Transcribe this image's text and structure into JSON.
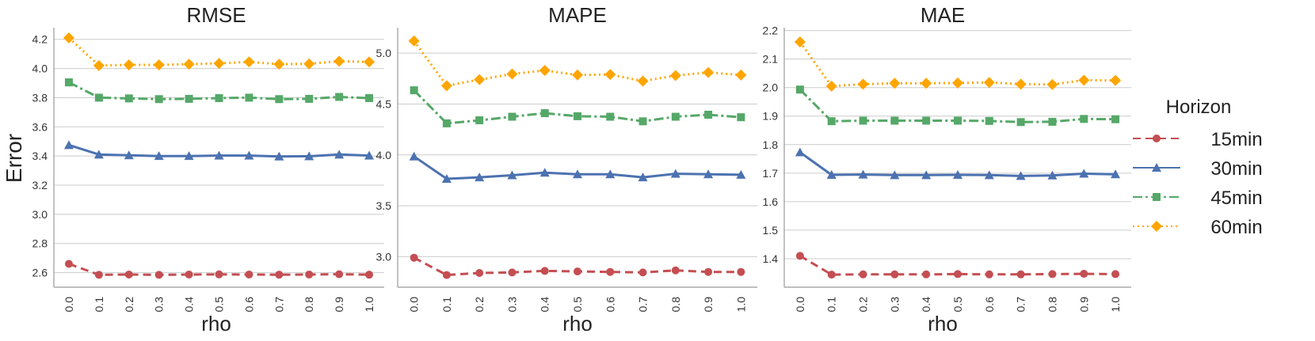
{
  "chart_data": [
    {
      "type": "line",
      "title": "RMSE",
      "xlabel": "rho",
      "ylabel": "Error",
      "x": [
        0.0,
        0.1,
        0.2,
        0.3,
        0.4,
        0.5,
        0.6,
        0.7,
        0.8,
        0.9,
        1.0
      ],
      "x_ticks": [
        "0.0",
        "0.1",
        "0.2",
        "0.3",
        "0.4",
        "0.5",
        "0.6",
        "0.7",
        "0.8",
        "0.9",
        "1.0"
      ],
      "ylim": [
        2.5,
        4.28
      ],
      "y_ticks": [
        "2.6",
        "2.8",
        "3.0",
        "3.2",
        "3.4",
        "3.6",
        "3.8",
        "4.0",
        "4.2"
      ],
      "series": [
        {
          "name": "15min",
          "values": [
            2.66,
            2.585,
            2.587,
            2.585,
            2.587,
            2.588,
            2.587,
            2.586,
            2.587,
            2.589,
            2.586
          ]
        },
        {
          "name": "30min",
          "values": [
            3.475,
            3.41,
            3.405,
            3.4,
            3.4,
            3.403,
            3.403,
            3.397,
            3.398,
            3.41,
            3.403
          ]
        },
        {
          "name": "45min",
          "values": [
            3.905,
            3.8,
            3.795,
            3.79,
            3.792,
            3.797,
            3.8,
            3.79,
            3.792,
            3.805,
            3.797
          ]
        },
        {
          "name": "60min",
          "values": [
            4.21,
            4.02,
            4.025,
            4.025,
            4.03,
            4.035,
            4.045,
            4.03,
            4.032,
            4.05,
            4.045
          ]
        }
      ]
    },
    {
      "type": "line",
      "title": "MAPE",
      "xlabel": "rho",
      "ylabel": "",
      "x": [
        0.0,
        0.1,
        0.2,
        0.3,
        0.4,
        0.5,
        0.6,
        0.7,
        0.8,
        0.9,
        1.0
      ],
      "x_ticks": [
        "0.0",
        "0.1",
        "0.2",
        "0.3",
        "0.4",
        "0.5",
        "0.6",
        "0.7",
        "0.8",
        "0.9",
        "1.0"
      ],
      "ylim": [
        2.7,
        5.25
      ],
      "y_ticks": [
        "3.0",
        "3.5",
        "4.0",
        "4.5",
        "5.0"
      ],
      "series": [
        {
          "name": "15min",
          "values": [
            2.99,
            2.82,
            2.84,
            2.845,
            2.86,
            2.855,
            2.85,
            2.845,
            2.865,
            2.85,
            2.85
          ]
        },
        {
          "name": "30min",
          "values": [
            3.985,
            3.765,
            3.78,
            3.8,
            3.825,
            3.81,
            3.81,
            3.78,
            3.815,
            3.81,
            3.805
          ]
        },
        {
          "name": "45min",
          "values": [
            4.635,
            4.31,
            4.34,
            4.375,
            4.41,
            4.38,
            4.375,
            4.33,
            4.375,
            4.395,
            4.37
          ]
        },
        {
          "name": "60min",
          "values": [
            5.12,
            4.68,
            4.74,
            4.795,
            4.83,
            4.785,
            4.79,
            4.725,
            4.78,
            4.81,
            4.785
          ]
        }
      ]
    },
    {
      "type": "line",
      "title": "MAE",
      "xlabel": "rho",
      "ylabel": "",
      "x": [
        0.0,
        0.1,
        0.2,
        0.3,
        0.4,
        0.5,
        0.6,
        0.7,
        0.8,
        0.9,
        1.0
      ],
      "x_ticks": [
        "0.0",
        "0.1",
        "0.2",
        "0.3",
        "0.4",
        "0.5",
        "0.6",
        "0.7",
        "0.8",
        "0.9",
        "1.0"
      ],
      "ylim": [
        1.3,
        2.21
      ],
      "y_ticks": [
        "1.4",
        "1.5",
        "1.6",
        "1.7",
        "1.8",
        "1.9",
        "2.0",
        "2.1",
        "2.2"
      ],
      "series": [
        {
          "name": "15min",
          "values": [
            1.41,
            1.344,
            1.345,
            1.345,
            1.345,
            1.346,
            1.345,
            1.345,
            1.346,
            1.347,
            1.346
          ]
        },
        {
          "name": "30min",
          "values": [
            1.773,
            1.694,
            1.695,
            1.693,
            1.693,
            1.694,
            1.693,
            1.69,
            1.692,
            1.698,
            1.696
          ]
        },
        {
          "name": "45min",
          "values": [
            1.993,
            1.882,
            1.884,
            1.884,
            1.884,
            1.884,
            1.883,
            1.879,
            1.88,
            1.89,
            1.889
          ]
        },
        {
          "name": "60min",
          "values": [
            2.16,
            2.005,
            2.012,
            2.015,
            2.015,
            2.016,
            2.018,
            2.012,
            2.011,
            2.026,
            2.025
          ]
        }
      ]
    }
  ],
  "legend": {
    "title": "Horizon",
    "entries": [
      {
        "label": "15min",
        "color": "#c44e52",
        "marker": "circle",
        "dash": "dashed"
      },
      {
        "label": "30min",
        "color": "#4c72b0",
        "marker": "triangle",
        "dash": "solid"
      },
      {
        "label": "45min",
        "color": "#55a868",
        "marker": "square",
        "dash": "dashdot"
      },
      {
        "label": "60min",
        "color": "#ffa500",
        "marker": "diamond",
        "dash": "dotted"
      }
    ]
  }
}
